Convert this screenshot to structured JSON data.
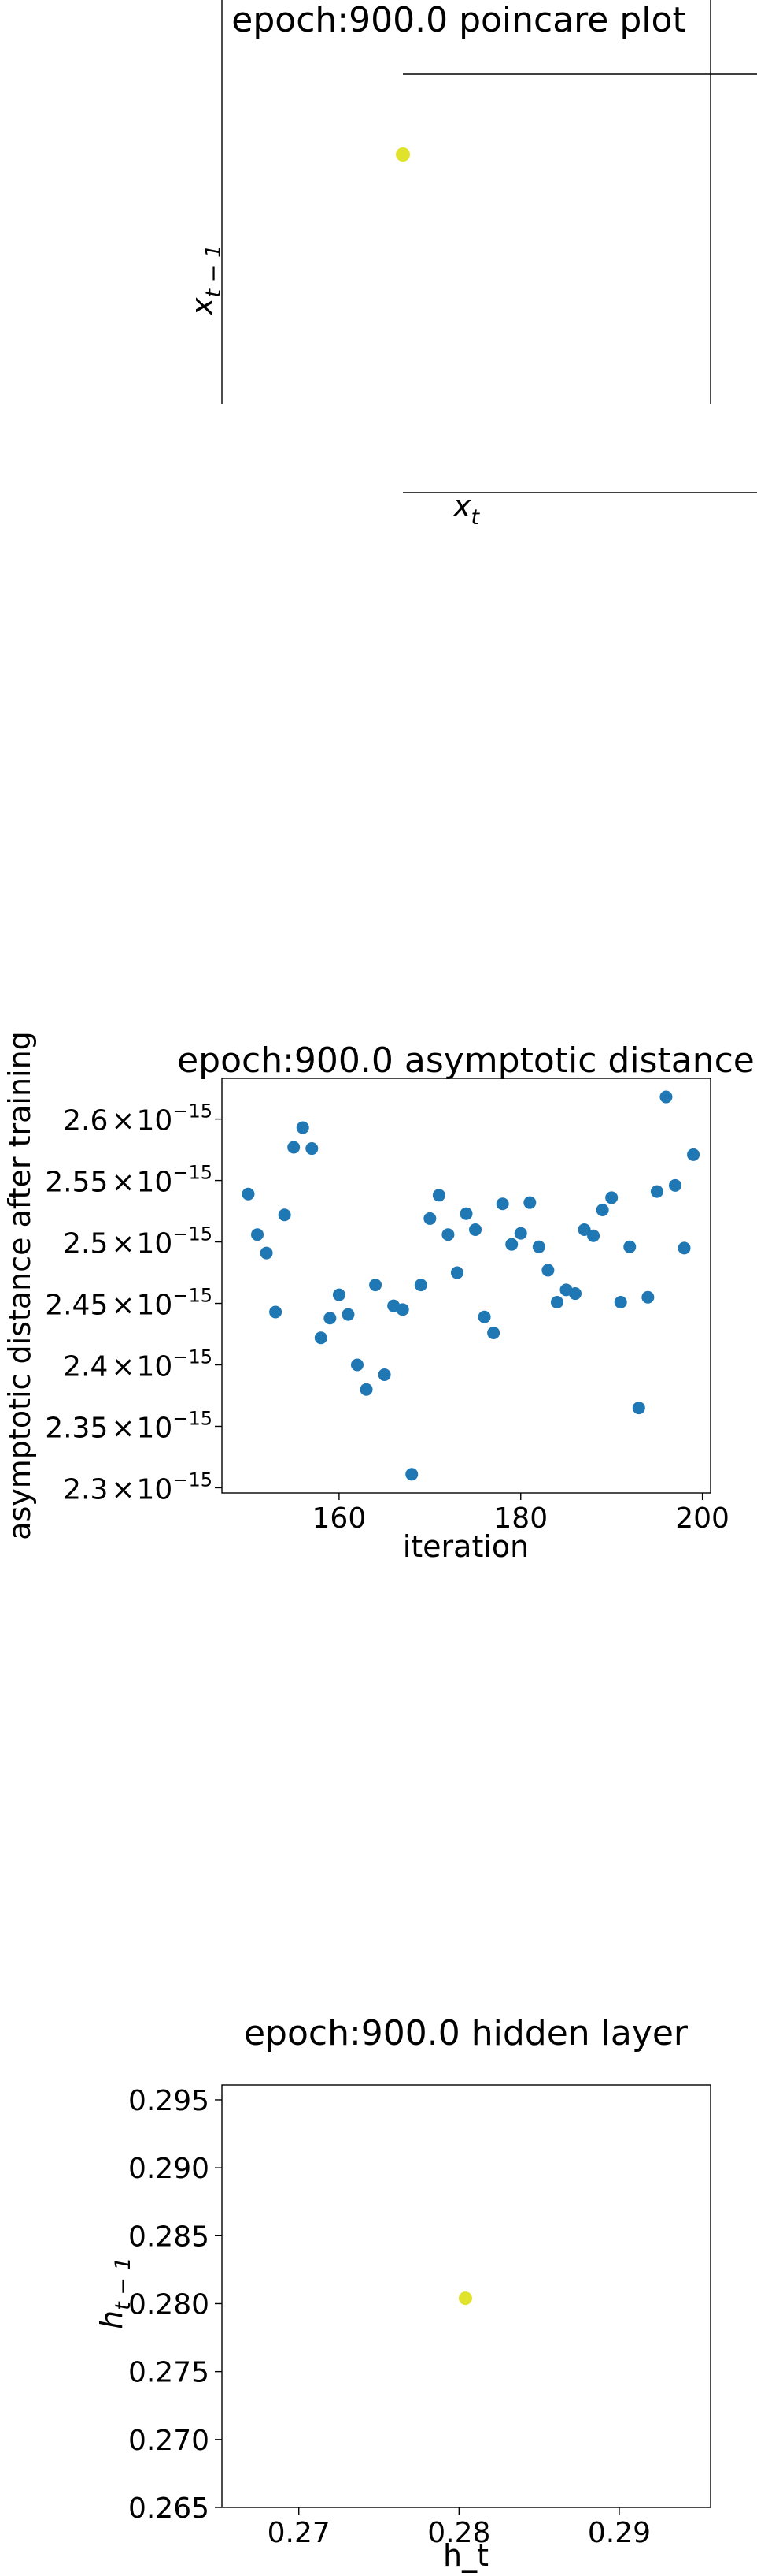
{
  "colors": {
    "yellow_point": "#e0e22c",
    "blue_point": "#1f77b4",
    "axis": "#000000",
    "background": "#ffffff"
  },
  "chart_data": [
    {
      "id": "poincare",
      "type": "scatter",
      "title": "epoch:900.0 poincare plot",
      "xlabel": "x",
      "xlabel_sub": "t",
      "ylabel": "x",
      "ylabel_sub": "t − 1",
      "points": [
        {
          "x": 0,
          "y": 0
        }
      ],
      "point_color": "#e0e22c",
      "grid": false
    },
    {
      "id": "asymptotic",
      "type": "scatter",
      "title": "epoch:900.0 asymptotic distance",
      "xlabel": "iteration",
      "ylabel": "asymptotic distance after training",
      "xlim": [
        147.1,
        200.9
      ],
      "ylim": [
        2.2958,
        2.6331
      ],
      "y_scale_exponent": "−15",
      "x_ticks": [
        160,
        180,
        200
      ],
      "y_ticks": [
        2.3,
        2.35,
        2.4,
        2.45,
        2.5,
        2.55,
        2.6
      ],
      "y_tick_labels": [
        "2.3",
        "2.35",
        "2.4",
        "2.45",
        "2.5",
        "2.55",
        "2.6"
      ],
      "y_tick_times": "×",
      "y_tick_base": "10",
      "point_color": "#1f77b4",
      "grid": false,
      "points": [
        {
          "x": 150,
          "y": 2.539
        },
        {
          "x": 151,
          "y": 2.506
        },
        {
          "x": 152,
          "y": 2.491
        },
        {
          "x": 153,
          "y": 2.443
        },
        {
          "x": 154,
          "y": 2.522
        },
        {
          "x": 155,
          "y": 2.577
        },
        {
          "x": 156,
          "y": 2.593
        },
        {
          "x": 157,
          "y": 2.576
        },
        {
          "x": 158,
          "y": 2.422
        },
        {
          "x": 159,
          "y": 2.438
        },
        {
          "x": 160,
          "y": 2.457
        },
        {
          "x": 161,
          "y": 2.441
        },
        {
          "x": 162,
          "y": 2.4
        },
        {
          "x": 163,
          "y": 2.38
        },
        {
          "x": 164,
          "y": 2.465
        },
        {
          "x": 165,
          "y": 2.392
        },
        {
          "x": 166,
          "y": 2.448
        },
        {
          "x": 167,
          "y": 2.445
        },
        {
          "x": 168,
          "y": 2.311
        },
        {
          "x": 169,
          "y": 2.465
        },
        {
          "x": 170,
          "y": 2.519
        },
        {
          "x": 171,
          "y": 2.538
        },
        {
          "x": 172,
          "y": 2.506
        },
        {
          "x": 173,
          "y": 2.475
        },
        {
          "x": 174,
          "y": 2.523
        },
        {
          "x": 175,
          "y": 2.51
        },
        {
          "x": 176,
          "y": 2.439
        },
        {
          "x": 177,
          "y": 2.426
        },
        {
          "x": 178,
          "y": 2.531
        },
        {
          "x": 179,
          "y": 2.498
        },
        {
          "x": 180,
          "y": 2.507
        },
        {
          "x": 181,
          "y": 2.532
        },
        {
          "x": 182,
          "y": 2.496
        },
        {
          "x": 183,
          "y": 2.477
        },
        {
          "x": 184,
          "y": 2.451
        },
        {
          "x": 185,
          "y": 2.461
        },
        {
          "x": 186,
          "y": 2.458
        },
        {
          "x": 187,
          "y": 2.51
        },
        {
          "x": 188,
          "y": 2.505
        },
        {
          "x": 189,
          "y": 2.526
        },
        {
          "x": 190,
          "y": 2.536
        },
        {
          "x": 191,
          "y": 2.451
        },
        {
          "x": 192,
          "y": 2.496
        },
        {
          "x": 193,
          "y": 2.365
        },
        {
          "x": 194,
          "y": 2.455
        },
        {
          "x": 195,
          "y": 2.541
        },
        {
          "x": 196,
          "y": 2.618
        },
        {
          "x": 197,
          "y": 2.546
        },
        {
          "x": 198,
          "y": 2.495
        },
        {
          "x": 199,
          "y": 2.571
        }
      ]
    },
    {
      "id": "hidden",
      "type": "scatter",
      "title": "epoch:900.0 hidden layer",
      "xlabel": "h_t",
      "ylabel": "h",
      "ylabel_sub": "t − 1",
      "xlim": [
        0.2652,
        0.2957
      ],
      "ylim": [
        0.265,
        0.2961
      ],
      "x_ticks": [
        0.27,
        0.28,
        0.29
      ],
      "x_tick_labels": [
        "0.27",
        "0.28",
        "0.29"
      ],
      "y_ticks": [
        0.265,
        0.27,
        0.275,
        0.28,
        0.285,
        0.29,
        0.295
      ],
      "y_tick_labels": [
        "0.265",
        "0.270",
        "0.275",
        "0.280",
        "0.285",
        "0.290",
        "0.295"
      ],
      "point_color": "#e0e22c",
      "grid": false,
      "points": [
        {
          "x": 0.2804,
          "y": 0.2804
        }
      ]
    }
  ]
}
